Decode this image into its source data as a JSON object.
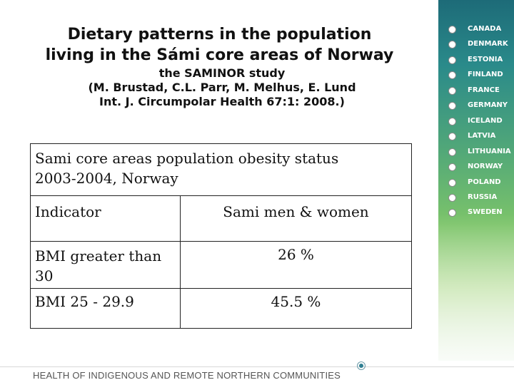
{
  "title": {
    "line1": "Dietary patterns in the population",
    "line2": "living in the Sámi core areas of Norway"
  },
  "subtitle": {
    "line1": "the SAMINOR study",
    "line2": "(M. Brustad, C.L. Parr, M. Melhus, E. Lund",
    "line3": "Int. J. Circumpolar Health 67:1: 2008.)"
  },
  "table": {
    "caption_line1": "Sami core areas population obesity status",
    "caption_line2": "2003-2004, Norway",
    "headers": [
      "Indicator",
      "Sami men & women"
    ],
    "rows": [
      {
        "indicator_line1": "BMI greater than",
        "indicator_line2": "30",
        "value": "26 %"
      },
      {
        "indicator_line1": "BMI 25 - 29.9",
        "value": "45.5 %"
      }
    ]
  },
  "countries": [
    "CANADA",
    "DENMARK",
    "ESTONIA",
    "FINLAND",
    "FRANCE",
    "GERMANY",
    "ICELAND",
    "LATVIA",
    "LITHUANIA",
    "NORWAY",
    "POLAND",
    "RUSSIA",
    "SWEDEN"
  ],
  "footer": {
    "text": "HEALTH OF INDIGENOUS AND REMOTE NORTHERN COMMUNITIES",
    "icon": "target-icon"
  },
  "colors": {
    "panel_top": "#1d6b78",
    "panel_mid": "#52a878",
    "panel_bottom": "#e6f2e2"
  }
}
